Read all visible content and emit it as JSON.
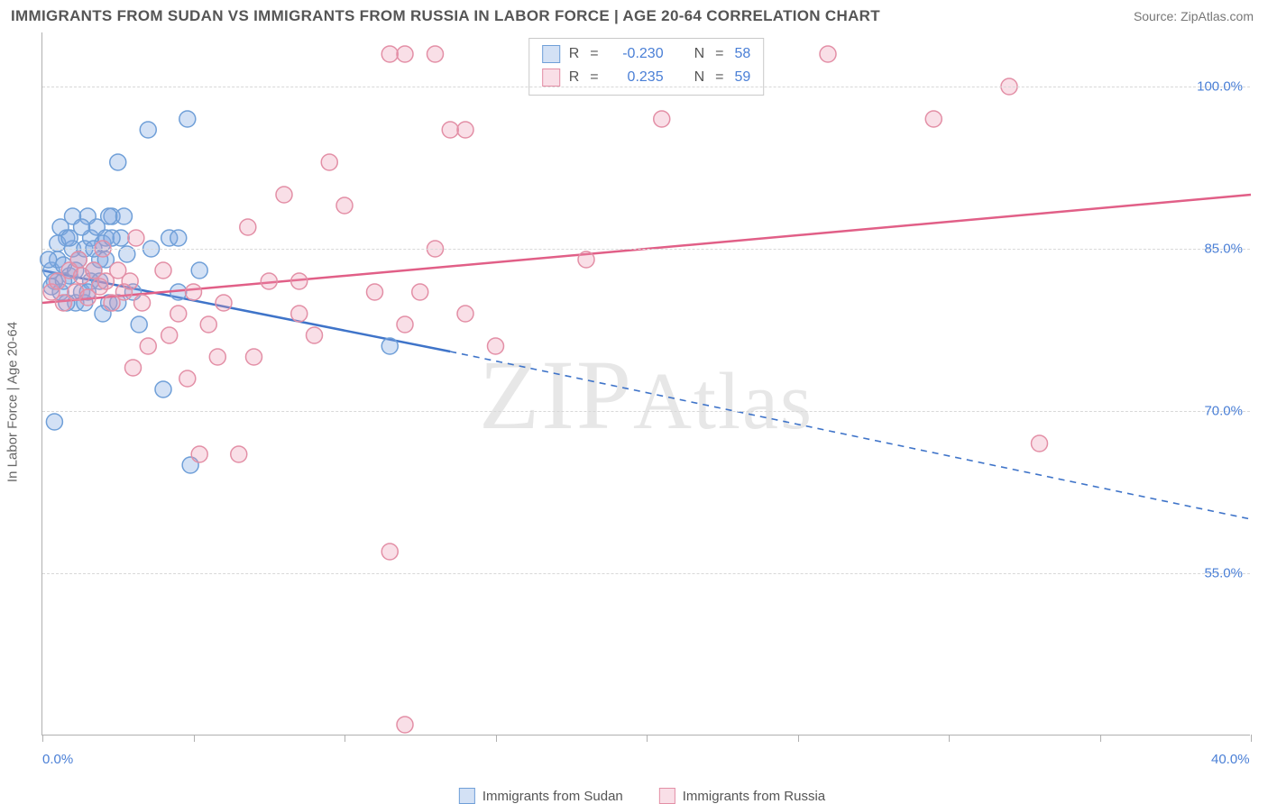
{
  "title": "IMMIGRANTS FROM SUDAN VS IMMIGRANTS FROM RUSSIA IN LABOR FORCE | AGE 20-64 CORRELATION CHART",
  "source": "Source: ZipAtlas.com",
  "watermark": "ZIPAtlas",
  "ylabel": "In Labor Force | Age 20-64",
  "chart": {
    "type": "scatter-with-regression",
    "xlim": [
      0,
      40
    ],
    "ylim": [
      40,
      105
    ],
    "x_ticks": [
      0,
      5,
      10,
      15,
      20,
      25,
      30,
      35,
      40
    ],
    "x_tick_labels": {
      "0": "0.0%",
      "40": "40.0%"
    },
    "y_gridlines": [
      55,
      70,
      85,
      100
    ],
    "y_tick_labels": {
      "55": "55.0%",
      "70": "70.0%",
      "85": "85.0%",
      "100": "100.0%"
    },
    "background_color": "#ffffff",
    "grid_color": "#d8d8d8",
    "axis_color": "#b0b0b0",
    "tick_label_color": "#4a7fd6",
    "marker_radius": 9,
    "marker_stroke_width": 1.5,
    "line_width": 2.5,
    "series": [
      {
        "name": "Immigrants from Sudan",
        "fill": "rgba(130,170,225,0.35)",
        "stroke": "#6f9fd8",
        "line_color": "#3f74c9",
        "r_value": "-0.230",
        "n_value": "58",
        "points": [
          [
            0.3,
            83
          ],
          [
            0.4,
            82
          ],
          [
            0.5,
            84
          ],
          [
            0.6,
            81
          ],
          [
            0.7,
            83.5
          ],
          [
            0.8,
            86
          ],
          [
            0.9,
            82.5
          ],
          [
            1.0,
            85
          ],
          [
            1.1,
            80
          ],
          [
            1.2,
            84
          ],
          [
            1.3,
            81
          ],
          [
            1.4,
            85
          ],
          [
            1.5,
            88
          ],
          [
            1.6,
            86
          ],
          [
            1.7,
            83
          ],
          [
            1.8,
            87
          ],
          [
            1.9,
            84
          ],
          [
            2.0,
            85.5
          ],
          [
            2.1,
            86
          ],
          [
            2.2,
            80
          ],
          [
            2.3,
            88
          ],
          [
            2.5,
            93
          ],
          [
            2.6,
            86
          ],
          [
            2.8,
            84.5
          ],
          [
            3.0,
            81
          ],
          [
            3.5,
            96
          ],
          [
            3.6,
            85
          ],
          [
            4.0,
            72
          ],
          [
            4.2,
            86
          ],
          [
            4.5,
            81
          ],
          [
            4.8,
            97
          ],
          [
            4.9,
            65
          ],
          [
            5.2,
            83
          ],
          [
            0.4,
            69
          ],
          [
            0.6,
            87
          ],
          [
            1.0,
            88
          ],
          [
            1.4,
            80
          ],
          [
            1.6,
            82
          ],
          [
            2.0,
            79
          ],
          [
            2.2,
            88
          ],
          [
            3.2,
            78
          ],
          [
            4.5,
            86
          ],
          [
            11.5,
            76
          ],
          [
            0.2,
            84
          ],
          [
            0.3,
            81.5
          ],
          [
            0.5,
            85.5
          ],
          [
            0.7,
            82
          ],
          [
            0.9,
            86
          ],
          [
            1.1,
            83
          ],
          [
            1.3,
            87
          ],
          [
            1.5,
            81
          ],
          [
            1.7,
            85
          ],
          [
            1.9,
            82
          ],
          [
            2.1,
            84
          ],
          [
            2.3,
            86
          ],
          [
            2.5,
            80
          ],
          [
            2.7,
            88
          ],
          [
            0.8,
            80
          ]
        ],
        "regression": {
          "x1": 0,
          "y1": 83,
          "x2": 13.5,
          "y2": 75.5,
          "x2_dash": 40,
          "y2_dash": 60
        }
      },
      {
        "name": "Immigrants from Russia",
        "fill": "rgba(235,150,175,0.30)",
        "stroke": "#e38fa6",
        "line_color": "#e15f87",
        "r_value": "0.235",
        "n_value": "59",
        "points": [
          [
            0.3,
            81
          ],
          [
            0.5,
            82
          ],
          [
            0.7,
            80
          ],
          [
            0.9,
            83
          ],
          [
            1.1,
            81
          ],
          [
            1.3,
            82.5
          ],
          [
            1.5,
            80.5
          ],
          [
            1.7,
            83
          ],
          [
            1.9,
            81.5
          ],
          [
            2.1,
            82
          ],
          [
            2.3,
            80
          ],
          [
            2.5,
            83
          ],
          [
            2.7,
            81
          ],
          [
            2.9,
            82
          ],
          [
            3.1,
            86
          ],
          [
            3.3,
            80
          ],
          [
            3.5,
            76
          ],
          [
            4.0,
            83
          ],
          [
            4.2,
            77
          ],
          [
            4.5,
            79
          ],
          [
            5.0,
            81
          ],
          [
            5.2,
            66
          ],
          [
            5.5,
            78
          ],
          [
            5.8,
            75
          ],
          [
            6.0,
            80
          ],
          [
            6.5,
            66
          ],
          [
            6.8,
            87
          ],
          [
            7.5,
            82
          ],
          [
            8.0,
            90
          ],
          [
            8.5,
            79
          ],
          [
            9.0,
            77
          ],
          [
            9.5,
            93
          ],
          [
            10.0,
            89
          ],
          [
            11.0,
            81
          ],
          [
            11.5,
            57
          ],
          [
            11.5,
            103
          ],
          [
            12.0,
            78
          ],
          [
            12.5,
            81
          ],
          [
            13.0,
            85
          ],
          [
            13.0,
            103
          ],
          [
            13.5,
            96
          ],
          [
            14.0,
            79
          ],
          [
            14.0,
            96
          ],
          [
            15.0,
            76
          ],
          [
            18.0,
            84
          ],
          [
            20.5,
            97
          ],
          [
            23.0,
            103
          ],
          [
            26.0,
            103
          ],
          [
            29.5,
            97
          ],
          [
            32.0,
            100
          ],
          [
            33.0,
            67
          ],
          [
            12.0,
            103
          ],
          [
            12.0,
            41
          ],
          [
            4.8,
            73
          ],
          [
            3.0,
            74
          ],
          [
            7.0,
            75
          ],
          [
            8.5,
            82
          ],
          [
            2.0,
            85
          ],
          [
            1.2,
            84
          ]
        ],
        "regression": {
          "x1": 0,
          "y1": 80,
          "x2": 40,
          "y2": 90
        }
      }
    ]
  },
  "stat_box": {
    "rows": [
      {
        "color_fill": "rgba(130,170,225,0.35)",
        "color_stroke": "#6f9fd8",
        "r": "-0.230",
        "n": "58"
      },
      {
        "color_fill": "rgba(235,150,175,0.30)",
        "color_stroke": "#e38fa6",
        "r": "0.235",
        "n": "59"
      }
    ],
    "label_R": "R",
    "label_N": "N",
    "eq": "="
  },
  "legend": {
    "items": [
      {
        "label": "Immigrants from Sudan",
        "fill": "rgba(130,170,225,0.35)",
        "stroke": "#6f9fd8"
      },
      {
        "label": "Immigrants from Russia",
        "fill": "rgba(235,150,175,0.30)",
        "stroke": "#e38fa6"
      }
    ]
  }
}
